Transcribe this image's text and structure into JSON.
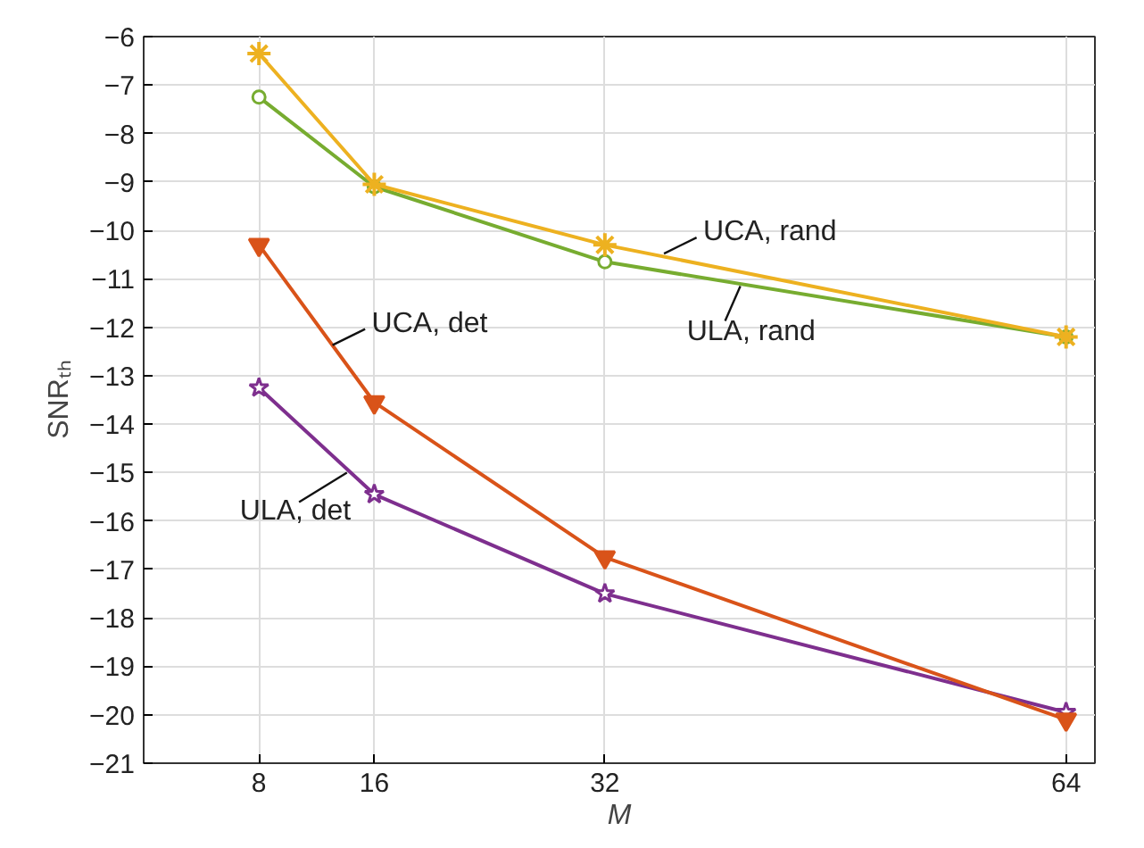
{
  "chart_data": {
    "type": "line",
    "xlabel": "M",
    "ylabel": "SNRₜₕ",
    "x": [
      8,
      16,
      32,
      64
    ],
    "series": [
      {
        "color": "#edb120",
        "marker": "cross",
        "values": [
          -6.35,
          -9.05,
          -10.3,
          -12.2
        ]
      },
      {
        "color": "#77ac30",
        "marker": "circle",
        "values": [
          -7.25,
          -9.1,
          -10.65,
          -12.2
        ]
      },
      {
        "color": "#d95319",
        "marker": "triangle",
        "values": [
          -10.3,
          -13.55,
          -16.75,
          -20.1
        ]
      },
      {
        "color": "#7e2f8e",
        "marker": "star",
        "values": [
          -13.25,
          -15.45,
          -17.5,
          -19.95
        ]
      }
    ],
    "annotations": [
      {
        "text": "UCA, rand",
        "x": 36.1,
        "y": -10.48
      },
      {
        "text": "ULA, rand",
        "x": 41.4,
        "y": -11.15
      },
      {
        "text": "UCA, det",
        "x": 13.1,
        "y": -12.37
      },
      {
        "text": "ULA, det",
        "x": 14.1,
        "y": -15.0
      }
    ],
    "xlim": [
      0,
      66
    ],
    "ylim": [
      -21,
      -6
    ],
    "xticks": [
      8,
      16,
      32,
      64
    ],
    "yticks": [
      -6,
      -7,
      -8,
      -9,
      -10,
      -11,
      -12,
      -13,
      -14,
      -15,
      -16,
      -17,
      -18,
      -19,
      -20,
      -21
    ],
    "grid": true,
    "line_style": "solid"
  }
}
